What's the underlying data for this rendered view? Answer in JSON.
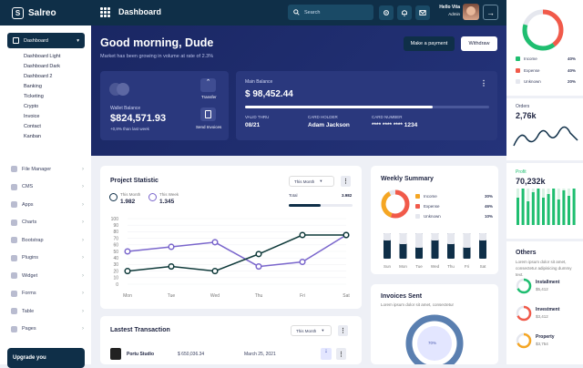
{
  "brand": {
    "name": "Salreo"
  },
  "header": {
    "title": "Dashboard",
    "search_placeholder": "Search",
    "user_name": "Hello Vita",
    "user_role": "Admin"
  },
  "sidebar": {
    "active": "Dashboard",
    "subitems": [
      "Dashboard Light",
      "Dashboard Dark",
      "Dashboard 2",
      "Banking",
      "Ticketing",
      "Crypto",
      "Invoice",
      "Contact",
      "Kanban"
    ],
    "menu": [
      "File Manager",
      "CMS",
      "Apps",
      "Charts",
      "Bootstrap",
      "Plugins",
      "Widget",
      "Forms",
      "Table",
      "Pages"
    ],
    "upgrade": "Upgrade you"
  },
  "hero": {
    "greeting": "Good morning, Dude",
    "subtitle": "Market has been growing in volume at rate of 2.3%",
    "make_payment": "Make a payment",
    "withdraw": "Withdraw"
  },
  "wallet": {
    "label": "Wallet Balance",
    "amount": "$824,571.93",
    "change": "+0,8% than last week",
    "transfer": "Transfer",
    "invoices": "Send Invoices"
  },
  "main_balance": {
    "label": "Main Balance",
    "amount": "$ 98,452.44",
    "progress": 0.77,
    "valid_label": "VALID THRU",
    "valid": "08/21",
    "holder_label": "CARD HOLDER",
    "holder": "Adam Jackson",
    "number_label": "CARD NUMBER",
    "number": "**** **** **** 1234"
  },
  "project_statistic": {
    "title": "Project Statistic",
    "filter": "This Month",
    "this_month_label": "This Month",
    "this_month_value": "1.982",
    "this_week_label": "This Week",
    "this_week_value": "1.345",
    "total_label": "Total",
    "total_value": "3.982",
    "total_progress": 0.5
  },
  "chart_data": {
    "type": "line",
    "categories": [
      "Mon",
      "Tue",
      "Wed",
      "Thu",
      "Fri",
      "Sat"
    ],
    "yticks": [
      0,
      10,
      20,
      30,
      40,
      50,
      60,
      70,
      80,
      90,
      100
    ],
    "ylim": [
      0,
      100
    ],
    "series": [
      {
        "color": "#7a66cc",
        "values": [
          50,
          57,
          64,
          27,
          34,
          75
        ]
      },
      {
        "color": "#0f3a3a",
        "values": [
          20,
          27,
          20,
          46,
          75,
          75
        ]
      }
    ]
  },
  "weekly_summary": {
    "title": "Weekly Summary",
    "legend": [
      {
        "label": "Income",
        "value": "30%",
        "color": "#f5a623"
      },
      {
        "label": "Expense",
        "value": "46%",
        "color": "#f15a4a"
      },
      {
        "label": "Unknown",
        "value": "10%",
        "color": "#e5e7ee"
      }
    ],
    "days": [
      "Sun",
      "Mon",
      "Tue",
      "Wed",
      "Thu",
      "Fri",
      "Sat"
    ]
  },
  "invoices": {
    "title": "Invoices Sent",
    "subtitle": "Lorem ipsum dolor sit amet, consectetur",
    "percent": "70%"
  },
  "latest": {
    "title": "Lastest Transaction",
    "filter": "This Month",
    "row_name": "Portu Studio",
    "row_amount": "$ 650,036.34",
    "row_date": "March 25, 2021"
  },
  "right": {
    "legend": [
      {
        "label": "Income",
        "value": "40%",
        "color": "#1fbe70"
      },
      {
        "label": "Expense",
        "value": "40%",
        "color": "#f15a4a"
      },
      {
        "label": "Unknown",
        "value": "20%",
        "color": "#e5e7ee"
      }
    ],
    "orders_label": "Orders",
    "orders_value": "2,76k",
    "profit_label": "Profit",
    "profit_value": "70,232k",
    "others_title": "Others",
    "others_sub": "Lorem ipsum dolor sit amet, consectetur adipisicing dummy text.",
    "items": [
      {
        "label": "Installment",
        "value": "$5,412",
        "color": "#1fbe70"
      },
      {
        "label": "Investment",
        "value": "$3,412",
        "color": "#f15a4a"
      },
      {
        "label": "Property",
        "value": "$3,754",
        "color": "#f5a623"
      }
    ]
  }
}
